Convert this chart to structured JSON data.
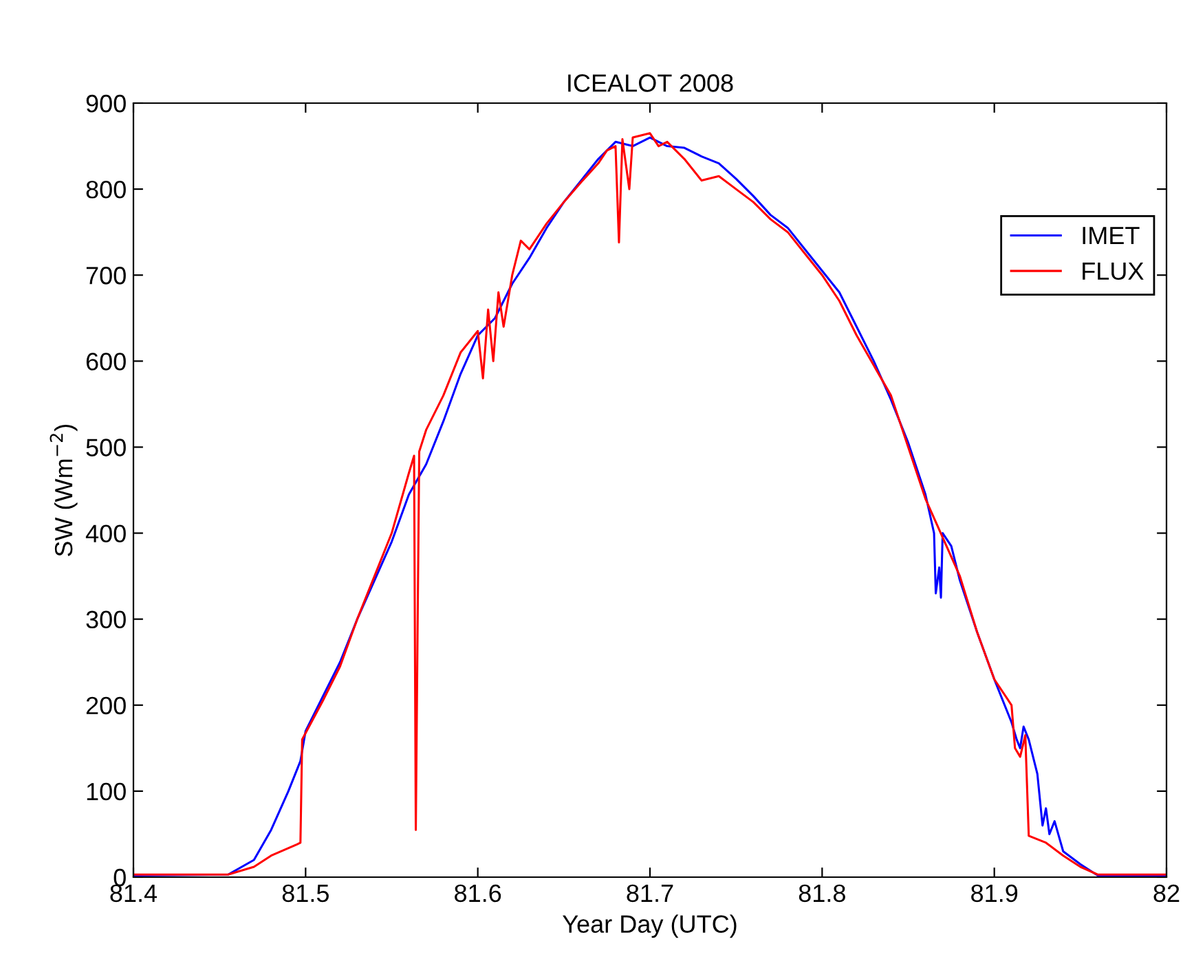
{
  "chart_data": {
    "type": "line",
    "title": "ICEALOT 2008",
    "xlabel": "Year Day (UTC)",
    "ylabel": "SW (Wm$^{−2}$)",
    "xlim": [
      81.4,
      82
    ],
    "xticks": [
      81.4,
      81.5,
      81.6,
      81.7,
      81.8,
      81.9,
      82
    ],
    "ylim": [
      0,
      900
    ],
    "yticks": [
      0,
      100,
      200,
      300,
      400,
      500,
      600,
      700,
      800,
      900
    ],
    "grid": false,
    "legend": "top right",
    "marker": "none",
    "line_style": "solid",
    "series": [
      {
        "name": "IMET",
        "color": "#0000ff",
        "x": [
          81.4,
          81.455,
          81.47,
          81.48,
          81.49,
          81.497,
          81.5,
          81.51,
          81.52,
          81.53,
          81.54,
          81.55,
          81.56,
          81.57,
          81.58,
          81.59,
          81.6,
          81.61,
          81.62,
          81.63,
          81.64,
          81.65,
          81.66,
          81.67,
          81.68,
          81.69,
          81.7,
          81.71,
          81.72,
          81.73,
          81.74,
          81.75,
          81.76,
          81.77,
          81.78,
          81.79,
          81.8,
          81.81,
          81.82,
          81.83,
          81.84,
          81.85,
          81.86,
          81.865,
          81.866,
          81.868,
          81.869,
          81.87,
          81.875,
          81.88,
          81.89,
          81.9,
          81.91,
          81.913,
          81.915,
          81.917,
          81.92,
          81.925,
          81.928,
          81.93,
          81.932,
          81.935,
          81.94,
          81.95,
          81.96,
          82
        ],
        "values": [
          2,
          3,
          20,
          55,
          100,
          135,
          170,
          210,
          250,
          300,
          345,
          390,
          445,
          480,
          530,
          585,
          630,
          650,
          690,
          720,
          755,
          785,
          810,
          835,
          855,
          850,
          860,
          850,
          848,
          838,
          830,
          812,
          792,
          770,
          755,
          730,
          705,
          680,
          640,
          600,
          555,
          505,
          445,
          400,
          330,
          360,
          325,
          400,
          385,
          345,
          285,
          230,
          180,
          160,
          150,
          175,
          160,
          120,
          60,
          80,
          50,
          65,
          30,
          15,
          2,
          2
        ]
      },
      {
        "name": "FLUX",
        "color": "#ff0000",
        "x": [
          81.4,
          81.455,
          81.47,
          81.48,
          81.495,
          81.497,
          81.498,
          81.51,
          81.52,
          81.53,
          81.54,
          81.55,
          81.56,
          81.563,
          81.564,
          81.565,
          81.566,
          81.57,
          81.58,
          81.59,
          81.6,
          81.603,
          81.606,
          81.609,
          81.612,
          81.615,
          81.62,
          81.625,
          81.63,
          81.64,
          81.65,
          81.66,
          81.67,
          81.675,
          81.68,
          81.682,
          81.684,
          81.688,
          81.69,
          81.7,
          81.705,
          81.71,
          81.72,
          81.73,
          81.74,
          81.75,
          81.76,
          81.77,
          81.78,
          81.79,
          81.8,
          81.81,
          81.82,
          81.83,
          81.84,
          81.85,
          81.86,
          81.87,
          81.88,
          81.89,
          81.9,
          81.91,
          81.912,
          81.915,
          81.918,
          81.92,
          81.93,
          81.94,
          81.95,
          81.96,
          82
        ],
        "values": [
          3,
          3,
          12,
          25,
          38,
          40,
          160,
          205,
          245,
          300,
          350,
          400,
          470,
          490,
          55,
          280,
          495,
          520,
          560,
          610,
          635,
          580,
          660,
          600,
          680,
          640,
          700,
          740,
          730,
          760,
          785,
          808,
          830,
          845,
          850,
          738,
          858,
          800,
          860,
          865,
          850,
          855,
          835,
          810,
          815,
          800,
          785,
          765,
          750,
          725,
          700,
          670,
          630,
          595,
          560,
          500,
          440,
          395,
          350,
          285,
          230,
          200,
          150,
          140,
          165,
          48,
          40,
          25,
          12,
          3,
          3
        ]
      }
    ]
  }
}
